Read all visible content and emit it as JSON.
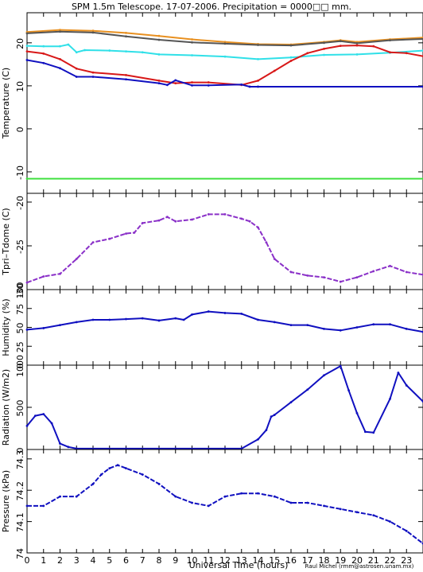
{
  "title": "SPM 1.5m Telescope. 17-07-2006. Precipitation = 0000□□ mm.",
  "credit": "Raul Michel (rmm@astrosen.unam.mx)",
  "chart_data": [
    {
      "type": "line",
      "ylabel": "Temperature (C)",
      "xlim": [
        0,
        24
      ],
      "ylim": [
        -15,
        27
      ],
      "yticks": [
        -10,
        0,
        10,
        20
      ],
      "grid": false,
      "series": [
        {
          "color": "#e89020",
          "x": [
            0,
            2,
            4,
            6,
            8,
            10,
            12,
            14,
            16,
            18,
            19,
            20,
            22,
            24
          ],
          "values": [
            22.5,
            23,
            22.8,
            22.3,
            21.6,
            20.8,
            20.2,
            19.7,
            19.6,
            20.2,
            20.6,
            20.2,
            20.8,
            21.2
          ]
        },
        {
          "color": "#555555",
          "x": [
            0,
            2,
            4,
            6,
            8,
            10,
            12,
            14,
            16,
            18,
            19,
            20,
            22,
            24
          ],
          "values": [
            22.2,
            22.6,
            22.4,
            21.5,
            20.7,
            20.1,
            19.8,
            19.5,
            19.4,
            20,
            20.4,
            19.9,
            20.6,
            20.9
          ]
        },
        {
          "color": "#30e0e8",
          "x": [
            0,
            1,
            2,
            2.5,
            3,
            3.5,
            5,
            6,
            7,
            8,
            10,
            12,
            14,
            16,
            18,
            20,
            22,
            24
          ],
          "values": [
            19.3,
            19.2,
            19.2,
            19.6,
            17.8,
            18.3,
            18.2,
            18,
            17.8,
            17.3,
            17.1,
            16.8,
            16.2,
            16.6,
            17.2,
            17.3,
            17.7,
            18.2
          ]
        },
        {
          "color": "#d81818",
          "x": [
            0,
            1,
            2,
            3,
            4,
            6,
            8,
            9,
            10,
            11,
            13,
            14,
            15,
            16,
            17,
            18,
            19,
            20,
            21,
            22,
            23,
            24
          ],
          "values": [
            18,
            17.5,
            16.2,
            14,
            13.1,
            12.5,
            11.2,
            10.6,
            10.8,
            10.8,
            10.2,
            11.2,
            13.5,
            15.8,
            17.6,
            18.6,
            19.3,
            19.4,
            19.2,
            17.8,
            17.6,
            16.9
          ]
        },
        {
          "color": "#1010c0",
          "x": [
            0,
            1,
            2,
            3,
            4,
            6,
            8,
            8.5,
            9,
            10,
            11,
            13,
            13.5,
            14,
            24
          ],
          "values": [
            16,
            15.3,
            14.1,
            12.1,
            12.1,
            11.5,
            10.6,
            10.2,
            11.3,
            10.1,
            10.1,
            10.3,
            9.8,
            9.8,
            9.8
          ]
        },
        {
          "color": "#40e040",
          "x": [
            0,
            24
          ],
          "values": [
            -11.6,
            -11.6
          ]
        }
      ]
    },
    {
      "type": "scatter",
      "ylabel": "Tpri–Tdome (C)",
      "xlim": [
        0,
        24
      ],
      "ylim": [
        -30,
        -19
      ],
      "yticks": [
        -30,
        -25,
        -20
      ],
      "color": "#8a30c8",
      "x": [
        0,
        1,
        2,
        3,
        4,
        5,
        6,
        6.5,
        7,
        8,
        8.5,
        9,
        10,
        11,
        12,
        13,
        13.5,
        14,
        14.5,
        15,
        16,
        17,
        18,
        19,
        20,
        21,
        22,
        23,
        24
      ],
      "values": [
        -29.2,
        -28.5,
        -28.2,
        -26.5,
        -24.6,
        -24.2,
        -23.6,
        -23.5,
        -22.4,
        -22.1,
        -21.7,
        -22.2,
        -22.0,
        -21.4,
        -21.4,
        -21.9,
        -22.2,
        -22.9,
        -24.6,
        -26.5,
        -28.0,
        -28.4,
        -28.6,
        -29.1,
        -28.6,
        -27.9,
        -27.3,
        -28.0,
        -28.3
      ]
    },
    {
      "type": "line",
      "ylabel": "Humidity (%)",
      "xlim": [
        0,
        24
      ],
      "ylim": [
        0,
        100
      ],
      "yticks": [
        0,
        25,
        50,
        75,
        100
      ],
      "color": "#1010c0",
      "x": [
        0,
        1,
        2,
        3,
        4,
        5,
        6,
        7,
        8,
        9,
        9.5,
        10,
        11,
        12,
        13,
        14,
        15,
        16,
        17,
        18,
        19,
        20,
        21,
        22,
        23,
        24
      ],
      "values": [
        47,
        49,
        53,
        57,
        60,
        60,
        61,
        62,
        59,
        62,
        60,
        67,
        71,
        69,
        68,
        60,
        57,
        53,
        53,
        48,
        46,
        50,
        54,
        54,
        48,
        44
      ]
    },
    {
      "type": "line",
      "ylabel": "Radiation (W/m2)",
      "xlim": [
        0,
        24
      ],
      "ylim": [
        0,
        1000
      ],
      "yticks": [
        0,
        500,
        1000
      ],
      "color": "#1010c0",
      "x": [
        0,
        0.5,
        1,
        1.5,
        2,
        2.5,
        3,
        6,
        9,
        12,
        13,
        14,
        14.5,
        14.8,
        15,
        16,
        17,
        18,
        19,
        19.5,
        20,
        20.5,
        21,
        22,
        22.5,
        23,
        24
      ],
      "values": [
        280,
        400,
        420,
        310,
        70,
        30,
        10,
        10,
        10,
        10,
        10,
        120,
        230,
        390,
        410,
        560,
        710,
        880,
        990,
        700,
        430,
        210,
        200,
        600,
        910,
        760,
        570
      ]
    },
    {
      "type": "scatter",
      "ylabel": "Pressure (kPa)",
      "xlabel": "Universal Time (hours)",
      "xlim": [
        0,
        24
      ],
      "ylim": [
        74,
        74.33
      ],
      "yticks": [
        74,
        74.1,
        74.2,
        74.3
      ],
      "xticks": [
        0,
        1,
        2,
        3,
        4,
        5,
        6,
        7,
        8,
        9,
        10,
        11,
        12,
        13,
        14,
        15,
        16,
        17,
        18,
        19,
        20,
        21,
        22,
        23
      ],
      "color": "#1010c0",
      "x": [
        0,
        1,
        2,
        3,
        4,
        4.5,
        5,
        5.5,
        6,
        7,
        8,
        9,
        10,
        11,
        12,
        13,
        14,
        15,
        16,
        17,
        18,
        19,
        20,
        21,
        22,
        23,
        24
      ],
      "values": [
        74.15,
        74.15,
        74.18,
        74.18,
        74.22,
        74.25,
        74.27,
        74.28,
        74.27,
        74.25,
        74.22,
        74.18,
        74.16,
        74.15,
        74.18,
        74.19,
        74.19,
        74.18,
        74.16,
        74.16,
        74.15,
        74.14,
        74.13,
        74.12,
        74.1,
        74.07,
        74.03
      ]
    }
  ]
}
